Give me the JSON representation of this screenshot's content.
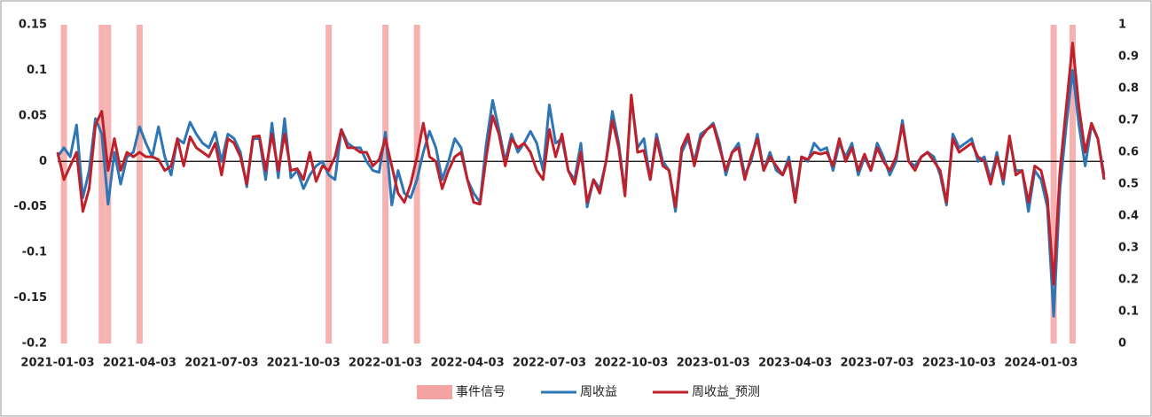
{
  "chart_data": {
    "type": "line",
    "categories": [
      "2021-01-03",
      null,
      null,
      null,
      null,
      null,
      null,
      null,
      null,
      null,
      null,
      null,
      null,
      "2021-04-03",
      null,
      null,
      null,
      null,
      null,
      null,
      null,
      null,
      null,
      null,
      null,
      null,
      "2021-07-03",
      null,
      null,
      null,
      null,
      null,
      null,
      null,
      null,
      null,
      null,
      null,
      null,
      "2021-10-03",
      null,
      null,
      null,
      null,
      null,
      null,
      null,
      null,
      null,
      null,
      null,
      null,
      "2022-01-03",
      null,
      null,
      null,
      null,
      null,
      null,
      null,
      null,
      null,
      null,
      null,
      null,
      "2022-04-03",
      null,
      null,
      null,
      null,
      null,
      null,
      null,
      null,
      null,
      null,
      null,
      null,
      "2022-07-03",
      null,
      null,
      null,
      null,
      null,
      null,
      null,
      null,
      null,
      null,
      null,
      null,
      "2022-10-03",
      null,
      null,
      null,
      null,
      null,
      null,
      null,
      null,
      null,
      null,
      null,
      null,
      "2023-01-03",
      null,
      null,
      null,
      null,
      null,
      null,
      null,
      null,
      null,
      null,
      null,
      null,
      "2023-04-03",
      null,
      null,
      null,
      null,
      null,
      null,
      null,
      null,
      null,
      null,
      null,
      null,
      "2023-07-03",
      null,
      null,
      null,
      null,
      null,
      null,
      null,
      null,
      null,
      null,
      null,
      null,
      "2023-10-03",
      null,
      null,
      null,
      null,
      null,
      null,
      null,
      null,
      null,
      null,
      null,
      null,
      "2024-01-03",
      null,
      null,
      null,
      null,
      null,
      null,
      null,
      null,
      null,
      null
    ],
    "series": [
      {
        "name": "事件信号",
        "type": "bar",
        "axis": "y2",
        "color": "#f4a3a3",
        "values": [
          0,
          1,
          0,
          0,
          0,
          0,
          0,
          1,
          1,
          0,
          0,
          0,
          0,
          1,
          0,
          0,
          0,
          0,
          0,
          0,
          0,
          0,
          0,
          0,
          0,
          0,
          0,
          0,
          0,
          0,
          0,
          0,
          0,
          0,
          0,
          0,
          0,
          0,
          0,
          0,
          0,
          0,
          0,
          1,
          0,
          0,
          0,
          0,
          0,
          0,
          0,
          0,
          1,
          0,
          0,
          0,
          0,
          1,
          0,
          0,
          0,
          0,
          0,
          0,
          0,
          0,
          0,
          0,
          0,
          0,
          0,
          0,
          0,
          0,
          0,
          0,
          0,
          0,
          0,
          0,
          0,
          0,
          0,
          0,
          0,
          0,
          0,
          0,
          0,
          0,
          0,
          0,
          0,
          0,
          0,
          0,
          0,
          0,
          0,
          0,
          0,
          0,
          0,
          0,
          0,
          0,
          0,
          0,
          0,
          0,
          0,
          0,
          0,
          0,
          0,
          0,
          0,
          0,
          0,
          0,
          0,
          0,
          0,
          0,
          0,
          0,
          0,
          0,
          0,
          0,
          0,
          0,
          0,
          0,
          0,
          0,
          0,
          0,
          0,
          0,
          0,
          0,
          0,
          0,
          0,
          0,
          0,
          0,
          0,
          0,
          0,
          0,
          0,
          0,
          0,
          0,
          0,
          0,
          1,
          0,
          0,
          1,
          0,
          0,
          0,
          0,
          0
        ]
      },
      {
        "name": "周收益",
        "type": "line",
        "color": "#2e75b6",
        "values": [
          0.005,
          0.015,
          0.005,
          0.04,
          -0.04,
          -0.01,
          0.047,
          0.03,
          -0.047,
          0.01,
          -0.025,
          0.005,
          0.01,
          0.038,
          0.02,
          0.005,
          0.038,
          0.005,
          -0.015,
          0.025,
          0.02,
          0.043,
          0.03,
          0.02,
          0.015,
          0.032,
          0,
          0.03,
          0.025,
          0.01,
          -0.028,
          0.025,
          0.025,
          -0.02,
          0.042,
          -0.018,
          0.047,
          -0.018,
          -0.01,
          -0.03,
          -0.015,
          -0.005,
          0,
          -0.015,
          -0.02,
          0.035,
          0.02,
          0.015,
          0.015,
          0,
          -0.01,
          -0.012,
          0.032,
          -0.048,
          -0.01,
          -0.035,
          -0.04,
          -0.02,
          0.01,
          0.033,
          0.015,
          -0.02,
          0,
          0.025,
          0.015,
          -0.02,
          -0.035,
          -0.045,
          0.02,
          0.067,
          0.035,
          0,
          0.03,
          0.01,
          0.02,
          0.033,
          0.02,
          -0.01,
          0.062,
          0.02,
          0.025,
          -0.01,
          -0.02,
          0.02,
          -0.05,
          -0.02,
          -0.03,
          0,
          0.055,
          0.02,
          -0.035,
          0.07,
          0.015,
          0.025,
          -0.02,
          0.03,
          0,
          -0.01,
          -0.055,
          0.01,
          0.025,
          0,
          0.03,
          0.035,
          0.042,
          0.02,
          -0.015,
          0.01,
          0.02,
          -0.015,
          0,
          0.03,
          -0.01,
          0.01,
          -0.01,
          -0.015,
          0.005,
          -0.04,
          0.005,
          0,
          0.02,
          0.012,
          0.015,
          -0.01,
          0.02,
          0.005,
          0.02,
          -0.015,
          0.005,
          -0.01,
          0.02,
          0.005,
          -0.015,
          0,
          0.045,
          0,
          -0.005,
          0.005,
          0.01,
          0.005,
          -0.015,
          -0.048,
          0.03,
          0.015,
          0.02,
          0.025,
          0,
          0.005,
          -0.02,
          0.01,
          -0.025,
          0.025,
          -0.01,
          -0.01,
          -0.055,
          -0.01,
          -0.02,
          -0.05,
          -0.17,
          -0.03,
          0.04,
          0.1,
          0.04,
          -0.005,
          0.04,
          0.025,
          -0.015
        ]
      },
      {
        "name": "周收益_预测",
        "type": "line",
        "color": "#c0202a",
        "values": [
          0.01,
          -0.02,
          -0.005,
          0.01,
          -0.055,
          -0.03,
          0.04,
          0.055,
          -0.01,
          0.025,
          -0.01,
          0.01,
          0.005,
          0.01,
          0.005,
          0.005,
          0.002,
          -0.01,
          -0.005,
          0.025,
          -0.005,
          0.027,
          0.015,
          0.01,
          0.005,
          0.02,
          -0.015,
          0.025,
          0.02,
          0.005,
          -0.025,
          0.027,
          0.028,
          -0.01,
          0.03,
          -0.01,
          0.03,
          -0.01,
          -0.008,
          -0.02,
          0.01,
          -0.022,
          -0.005,
          -0.01,
          0.005,
          0.035,
          0.015,
          0.015,
          0.01,
          0.01,
          -0.005,
          0.002,
          0.025,
          -0.005,
          -0.035,
          -0.045,
          -0.025,
          0.005,
          0.042,
          0.005,
          0,
          -0.03,
          -0.01,
          0.005,
          0.01,
          -0.02,
          -0.045,
          -0.047,
          0.005,
          0.05,
          0.03,
          -0.005,
          0.025,
          0.015,
          0.02,
          0.01,
          -0.01,
          -0.02,
          0.035,
          0.005,
          0.03,
          -0.01,
          -0.025,
          0.01,
          -0.045,
          -0.02,
          -0.035,
          0,
          0.045,
          0.015,
          -0.038,
          0.073,
          0.01,
          0.012,
          -0.02,
          0.025,
          -0.005,
          -0.01,
          -0.05,
          0.015,
          0.03,
          -0.005,
          0.025,
          0.035,
          0.04,
          0.015,
          -0.01,
          0.01,
          0.015,
          -0.02,
          0.005,
          0.025,
          -0.01,
          0.005,
          -0.005,
          -0.015,
          0,
          -0.045,
          0.005,
          0.002,
          0.01,
          0.008,
          0.01,
          -0.005,
          0.025,
          0,
          0.015,
          -0.01,
          0.008,
          -0.01,
          0.015,
          0,
          -0.01,
          0.005,
          0.04,
          0,
          -0.01,
          0.005,
          0.01,
          0,
          -0.01,
          -0.045,
          0.025,
          0.01,
          0.015,
          0.02,
          0.005,
          0,
          -0.025,
          0.005,
          -0.02,
          0.028,
          -0.015,
          -0.01,
          -0.045,
          -0.005,
          -0.01,
          -0.04,
          -0.135,
          -0.01,
          0.06,
          0.13,
          0.06,
          0.01,
          0.042,
          0.025,
          -0.02
        ]
      }
    ],
    "ylim": [
      -0.2,
      0.15
    ],
    "yticks": [
      0.15,
      0.1,
      0.05,
      0,
      -0.05,
      -0.1,
      -0.15,
      -0.2
    ],
    "y2lim": [
      0,
      1
    ],
    "y2ticks": [
      1,
      0.9,
      0.8,
      0.7,
      0.6,
      0.5,
      0.4,
      0.3,
      0.2,
      0.1,
      0
    ],
    "legend": "bottom"
  }
}
